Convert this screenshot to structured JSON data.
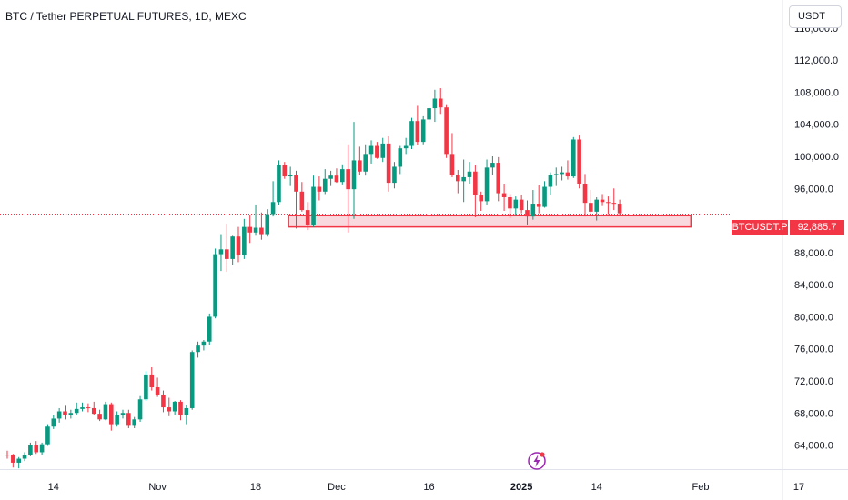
{
  "header": {
    "title": "BTC / Tether PERPETUAL FUTURES, 1D, MEXC",
    "currency_button": "USDT"
  },
  "last_price": {
    "symbol": "BTCUSDT.P",
    "value_label": "92,885.7",
    "value": 92885.7
  },
  "colors": {
    "up": "#089981",
    "down": "#f23645",
    "zone_fill": "#f8c9d0",
    "zone_border": "#f23645",
    "text": "#131722",
    "lightning": "#9c27b0"
  },
  "chart_data": {
    "type": "candlestick",
    "ylim": [
      61000,
      119500
    ],
    "y_ticks": [
      {
        "value": 64000,
        "label": "64,000.0"
      },
      {
        "value": 68000,
        "label": "68,000.0"
      },
      {
        "value": 72000,
        "label": "72,000.0"
      },
      {
        "value": 76000,
        "label": "76,000.0"
      },
      {
        "value": 80000,
        "label": "80,000.0"
      },
      {
        "value": 84000,
        "label": "84,000.0"
      },
      {
        "value": 88000,
        "label": "88,000.0"
      },
      {
        "value": 96000,
        "label": "96,000.0"
      },
      {
        "value": 100000,
        "label": "100,000.0"
      },
      {
        "value": 104000,
        "label": "104,000.0"
      },
      {
        "value": 108000,
        "label": "108,000.0"
      },
      {
        "value": 112000,
        "label": "112,000.0"
      },
      {
        "value": 116000,
        "label": "116,000.0"
      }
    ],
    "x_ticks": [
      {
        "index": 8,
        "label": "14",
        "bold": false
      },
      {
        "index": 26,
        "label": "Nov",
        "bold": false
      },
      {
        "index": 43,
        "label": "18",
        "bold": false
      },
      {
        "index": 57,
        "label": "Dec",
        "bold": false
      },
      {
        "index": 73,
        "label": "16",
        "bold": false
      },
      {
        "index": 89,
        "label": "2025",
        "bold": true
      },
      {
        "index": 102,
        "label": "14",
        "bold": false
      },
      {
        "index": 120,
        "label": "Feb",
        "bold": false
      },
      {
        "index": 137,
        "label": "17",
        "bold": false
      }
    ],
    "support_zone": {
      "low": 91200,
      "high": 92600,
      "from_index": 49,
      "to_index": 118
    },
    "last_price_value": 92885.7,
    "candles": [
      [
        62800,
        63300,
        62300,
        62700
      ],
      [
        62700,
        62900,
        61200,
        61800
      ],
      [
        61800,
        62500,
        61100,
        62300
      ],
      [
        62300,
        63100,
        62000,
        62800
      ],
      [
        62800,
        64300,
        62600,
        64000
      ],
      [
        64000,
        64500,
        62900,
        63100
      ],
      [
        63100,
        64300,
        62800,
        64100
      ],
      [
        64100,
        66600,
        63900,
        66300
      ],
      [
        66300,
        67700,
        66000,
        67300
      ],
      [
        67300,
        68600,
        66800,
        68200
      ],
      [
        68200,
        68900,
        67200,
        67700
      ],
      [
        67700,
        68400,
        67300,
        68000
      ],
      [
        68000,
        69300,
        67700,
        68500
      ],
      [
        68500,
        69300,
        68200,
        68700
      ],
      [
        68700,
        69200,
        68100,
        68600
      ],
      [
        68600,
        69400,
        67800,
        67900
      ],
      [
        67900,
        68400,
        67000,
        67200
      ],
      [
        67200,
        69400,
        67100,
        69100
      ],
      [
        69100,
        69300,
        65800,
        66600
      ],
      [
        66600,
        68200,
        66300,
        67700
      ],
      [
        67700,
        68400,
        67300,
        68000
      ],
      [
        68000,
        68400,
        66100,
        66400
      ],
      [
        66400,
        67500,
        66100,
        67200
      ],
      [
        67200,
        70100,
        66900,
        69700
      ],
      [
        69700,
        73200,
        69500,
        72800
      ],
      [
        72800,
        73700,
        70800,
        71200
      ],
      [
        71200,
        72400,
        70000,
        70300
      ],
      [
        70300,
        70800,
        68100,
        68700
      ],
      [
        68700,
        69900,
        67600,
        68200
      ],
      [
        68200,
        69500,
        67700,
        69400
      ],
      [
        69400,
        69600,
        67100,
        67700
      ],
      [
        67700,
        69000,
        66600,
        68600
      ],
      [
        68600,
        75800,
        68400,
        75600
      ],
      [
        75600,
        76900,
        74900,
        76400
      ],
      [
        76400,
        77100,
        75800,
        76900
      ],
      [
        76900,
        80400,
        76500,
        80000
      ],
      [
        80000,
        88500,
        79800,
        87800
      ],
      [
        87800,
        90300,
        85700,
        88400
      ],
      [
        88400,
        91600,
        85600,
        87200
      ],
      [
        87200,
        90100,
        86400,
        90000
      ],
      [
        90000,
        91200,
        86800,
        87700
      ],
      [
        87700,
        92200,
        87200,
        91200
      ],
      [
        91200,
        92700,
        89200,
        90500
      ],
      [
        90500,
        94000,
        90100,
        91100
      ],
      [
        91100,
        93000,
        89600,
        90300
      ],
      [
        90300,
        93400,
        90000,
        92800
      ],
      [
        92800,
        96900,
        92500,
        94300
      ],
      [
        94300,
        99500,
        93900,
        98900
      ],
      [
        98900,
        99300,
        97200,
        97500
      ],
      [
        97500,
        98700,
        96300,
        97700
      ],
      [
        97700,
        98200,
        91000,
        95600
      ],
      [
        95600,
        96800,
        93100,
        93300
      ],
      [
        93300,
        94300,
        90800,
        91400
      ],
      [
        91400,
        97600,
        91200,
        96200
      ],
      [
        96200,
        97500,
        94500,
        95600
      ],
      [
        95600,
        98400,
        95300,
        97200
      ],
      [
        97200,
        98200,
        96300,
        97600
      ],
      [
        97600,
        98500,
        96700,
        96800
      ],
      [
        96800,
        99000,
        96500,
        98400
      ],
      [
        98400,
        101500,
        90500,
        95900
      ],
      [
        95900,
        104300,
        92200,
        99500
      ],
      [
        99500,
        101200,
        97700,
        98100
      ],
      [
        98100,
        101500,
        97600,
        100300
      ],
      [
        100300,
        102000,
        99100,
        101300
      ],
      [
        101300,
        101800,
        99700,
        99800
      ],
      [
        99800,
        102300,
        99300,
        101600
      ],
      [
        101600,
        102500,
        95600,
        96700
      ],
      [
        96700,
        99300,
        96000,
        98700
      ],
      [
        98700,
        101300,
        97800,
        101000
      ],
      [
        101000,
        102300,
        100300,
        101300
      ],
      [
        101300,
        104800,
        100900,
        104400
      ],
      [
        104400,
        106300,
        101400,
        101800
      ],
      [
        101800,
        105000,
        101500,
        104600
      ],
      [
        104600,
        106100,
        104200,
        106000
      ],
      [
        106000,
        108300,
        104300,
        107200
      ],
      [
        107200,
        108500,
        105300,
        106100
      ],
      [
        106100,
        106500,
        99800,
        100300
      ],
      [
        100300,
        102900,
        97400,
        97700
      ],
      [
        97700,
        98300,
        95400,
        96900
      ],
      [
        96900,
        99600,
        94300,
        97400
      ],
      [
        97400,
        99300,
        96600,
        98100
      ],
      [
        98100,
        98900,
        92400,
        95200
      ],
      [
        95200,
        95600,
        93200,
        94400
      ],
      [
        94400,
        99600,
        94000,
        98600
      ],
      [
        98600,
        100000,
        97700,
        99200
      ],
      [
        99200,
        99900,
        94400,
        95400
      ],
      [
        95400,
        96600,
        93200,
        94900
      ],
      [
        94900,
        95300,
        92300,
        93500
      ],
      [
        93500,
        95000,
        92600,
        94600
      ],
      [
        94600,
        95200,
        92900,
        93300
      ],
      [
        93300,
        94500,
        91400,
        92500
      ],
      [
        92500,
        95800,
        92100,
        94100
      ],
      [
        94100,
        96400,
        92900,
        93700
      ],
      [
        93700,
        96900,
        93600,
        96200
      ],
      [
        96200,
        98000,
        95200,
        97700
      ],
      [
        97700,
        98600,
        96300,
        97800
      ],
      [
        97800,
        98700,
        97000,
        98000
      ],
      [
        98000,
        99500,
        97100,
        97500
      ],
      [
        97500,
        102400,
        97300,
        102100
      ],
      [
        102100,
        102600,
        96000,
        96600
      ],
      [
        96600,
        97800,
        92500,
        94200
      ],
      [
        94200,
        95800,
        92700,
        93100
      ],
      [
        93100,
        94900,
        92000,
        94600
      ],
      [
        94600,
        95300,
        93800,
        94300
      ],
      [
        94300,
        95000,
        92800,
        94200
      ],
      [
        94200,
        96000,
        93300,
        94100
      ],
      [
        94100,
        94600,
        92700,
        92900
      ]
    ]
  }
}
